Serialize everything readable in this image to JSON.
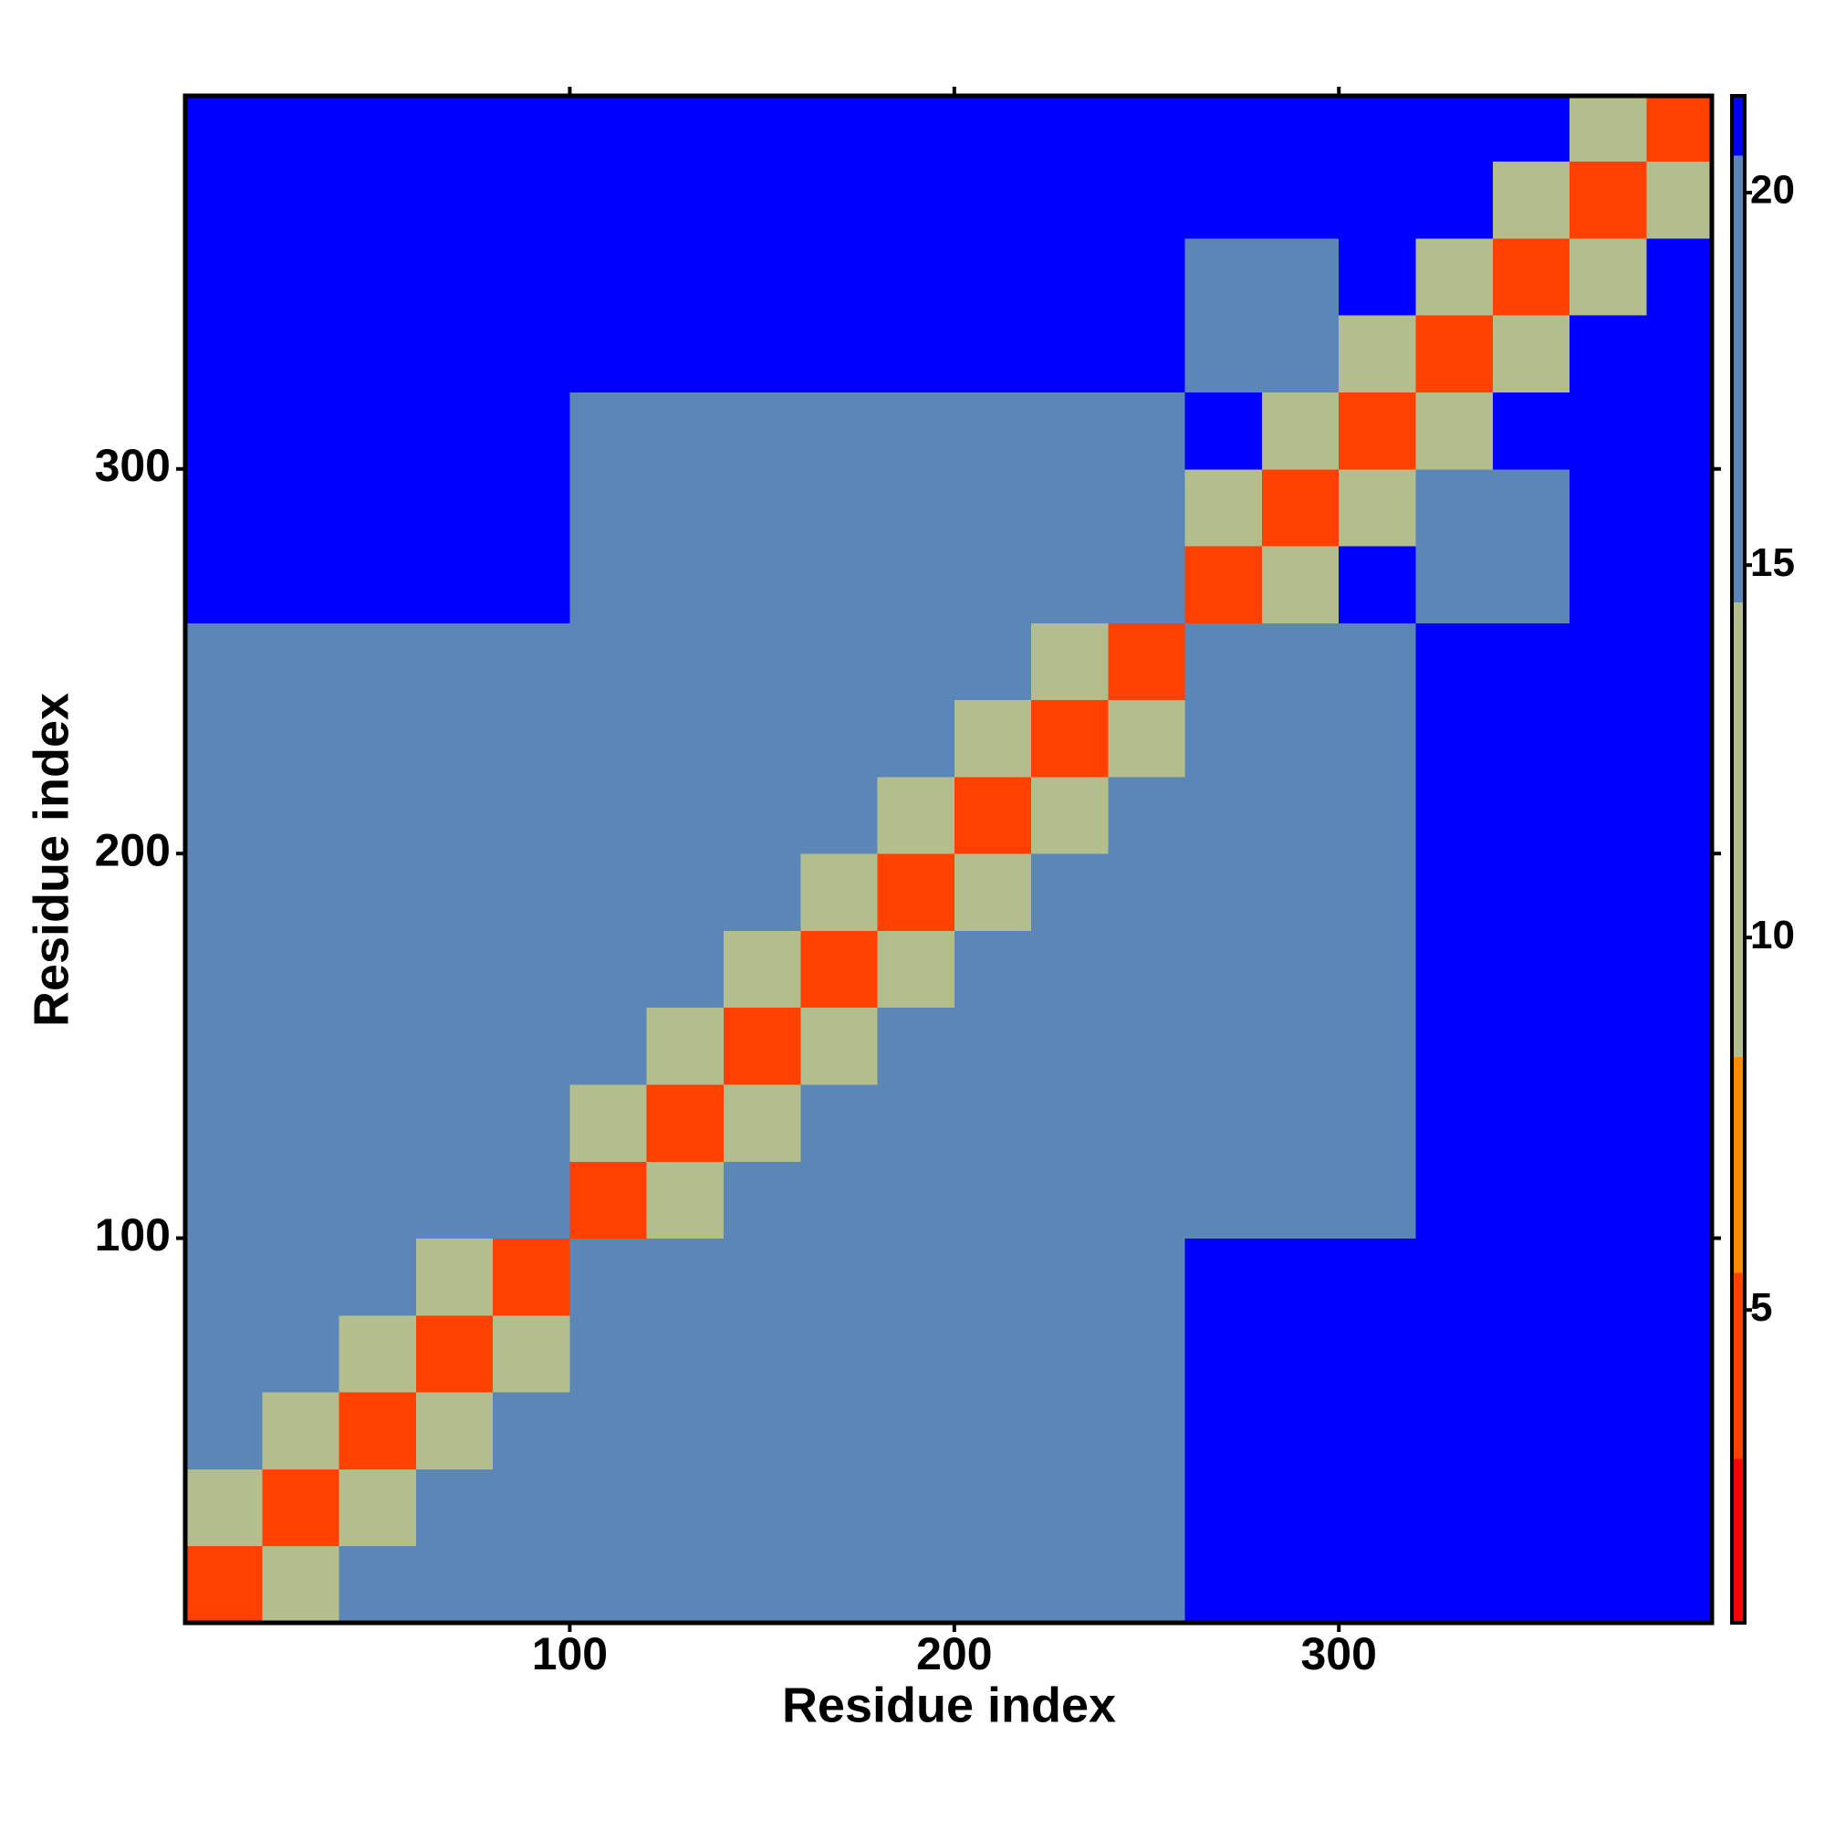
{
  "chart_data": {
    "type": "heatmap",
    "x_label": "Residue index",
    "y_label": "Residue index",
    "xlim": [
      0,
      397
    ],
    "ylim": [
      0,
      397
    ],
    "xticks": [
      100,
      200,
      300
    ],
    "yticks": [
      100,
      200,
      300
    ],
    "bins": [
      0,
      20,
      40,
      60,
      80,
      100,
      120,
      140,
      160,
      180,
      200,
      220,
      240,
      260,
      280,
      300,
      320,
      340,
      360,
      380,
      397
    ],
    "values": [
      [
        4,
        13,
        15,
        15,
        15,
        19,
        19,
        19,
        19,
        19,
        19,
        19,
        19,
        21,
        21,
        21,
        21,
        21,
        21,
        21
      ],
      [
        13,
        4,
        13,
        15,
        15,
        19,
        19,
        19,
        19,
        19,
        19,
        19,
        19,
        21,
        21,
        21,
        21,
        21,
        21,
        21
      ],
      [
        15,
        13,
        4,
        13,
        15,
        19,
        19,
        19,
        19,
        19,
        19,
        19,
        19,
        21,
        21,
        21,
        21,
        21,
        21,
        21
      ],
      [
        15,
        15,
        13,
        4,
        13,
        19,
        19,
        19,
        19,
        19,
        19,
        19,
        19,
        21,
        21,
        21,
        21,
        21,
        21,
        21
      ],
      [
        15,
        15,
        15,
        13,
        4,
        16,
        19,
        19,
        19,
        19,
        19,
        19,
        19,
        21,
        21,
        21,
        21,
        21,
        21,
        21
      ],
      [
        19,
        19,
        19,
        19,
        16,
        4,
        13,
        15,
        17,
        17,
        17,
        17,
        17,
        20,
        20,
        20,
        21,
        21,
        21,
        21
      ],
      [
        19,
        19,
        19,
        19,
        19,
        13,
        4,
        13,
        15,
        17,
        17,
        17,
        17,
        20,
        20,
        20,
        21,
        21,
        21,
        21
      ],
      [
        19,
        19,
        19,
        19,
        19,
        15,
        13,
        4,
        13,
        15,
        17,
        17,
        17,
        20,
        20,
        20,
        21,
        21,
        21,
        21
      ],
      [
        19,
        19,
        19,
        19,
        19,
        17,
        15,
        13,
        4,
        13,
        15,
        17,
        17,
        20,
        20,
        20,
        21,
        21,
        21,
        21
      ],
      [
        19,
        19,
        19,
        19,
        19,
        17,
        17,
        15,
        13,
        4,
        13,
        15,
        17,
        20,
        20,
        20,
        21,
        21,
        21,
        21
      ],
      [
        19,
        19,
        19,
        19,
        19,
        17,
        17,
        17,
        15,
        13,
        4,
        13,
        15,
        20,
        20,
        20,
        21,
        21,
        21,
        21
      ],
      [
        19,
        19,
        19,
        19,
        19,
        17,
        17,
        17,
        17,
        15,
        13,
        4,
        13,
        20,
        20,
        20,
        21,
        21,
        21,
        21
      ],
      [
        19,
        19,
        19,
        19,
        19,
        17,
        17,
        17,
        17,
        17,
        15,
        13,
        4,
        16,
        20,
        20,
        21,
        21,
        21,
        21
      ],
      [
        21,
        21,
        21,
        21,
        21,
        20,
        20,
        20,
        20,
        20,
        20,
        20,
        16,
        4,
        14,
        21,
        16,
        16,
        21,
        21
      ],
      [
        21,
        21,
        21,
        21,
        21,
        20,
        20,
        20,
        20,
        20,
        20,
        20,
        20,
        14,
        4,
        14,
        16,
        16,
        21,
        21
      ],
      [
        21,
        21,
        21,
        21,
        21,
        20,
        20,
        20,
        20,
        20,
        20,
        20,
        20,
        21,
        14,
        4,
        14,
        21,
        21,
        21
      ],
      [
        21,
        21,
        21,
        21,
        21,
        21,
        21,
        21,
        21,
        21,
        21,
        21,
        21,
        16,
        16,
        14,
        4,
        14,
        21,
        21
      ],
      [
        21,
        21,
        21,
        21,
        21,
        21,
        21,
        21,
        21,
        21,
        21,
        21,
        21,
        16,
        16,
        21,
        14,
        4,
        14,
        21
      ],
      [
        21,
        21,
        21,
        21,
        21,
        21,
        21,
        21,
        21,
        21,
        21,
        21,
        21,
        21,
        21,
        21,
        21,
        14,
        4,
        14
      ],
      [
        21,
        21,
        21,
        21,
        21,
        21,
        21,
        21,
        21,
        21,
        21,
        21,
        21,
        21,
        21,
        21,
        21,
        21,
        14,
        4
      ]
    ],
    "zlim": [
      0.8,
      21.3
    ],
    "zticks": [
      5,
      10,
      15,
      20
    ],
    "colorscale": [
      {
        "from": 0.8,
        "color": "#ff0000"
      },
      {
        "from": 3,
        "color": "#ff4000"
      },
      {
        "from": 5.5,
        "color": "#ff8c00"
      },
      {
        "from": 8.4,
        "color": "#b4be8c"
      },
      {
        "from": 14.5,
        "color": "#5b87b8"
      },
      {
        "from": 20.5,
        "color": "#0000ff"
      }
    ]
  }
}
